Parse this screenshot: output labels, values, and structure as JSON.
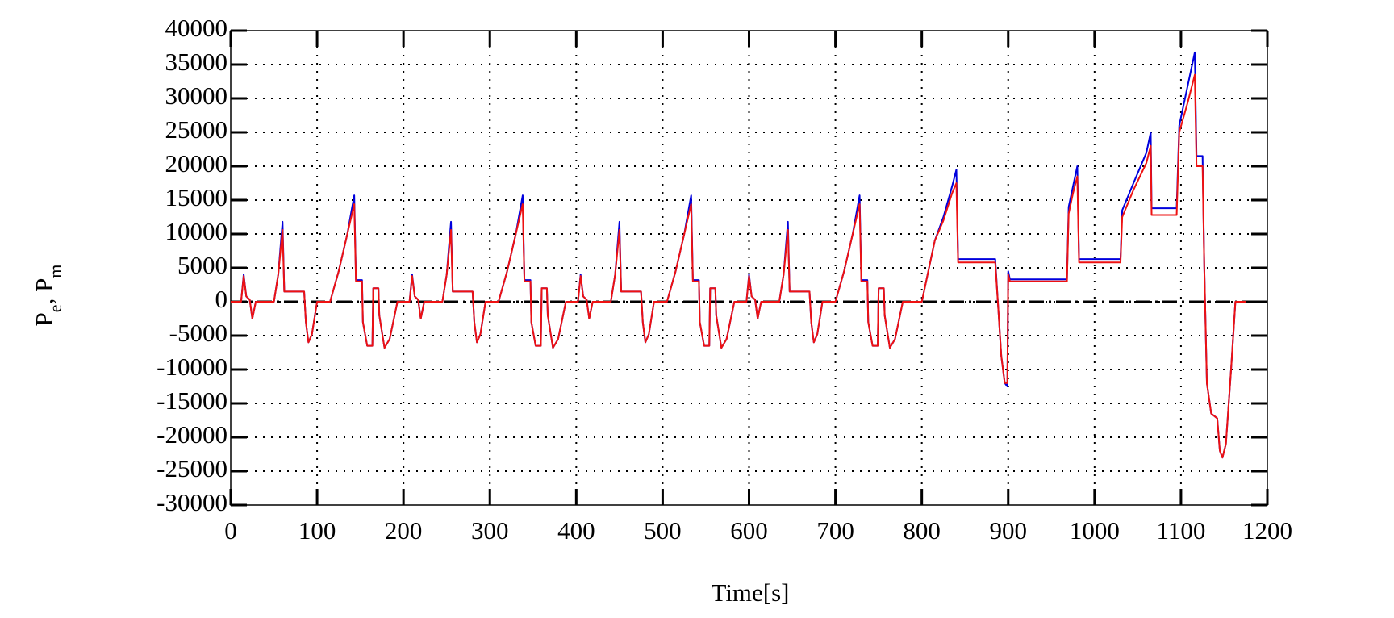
{
  "chart_data": {
    "type": "line",
    "xlabel": "Time[s]",
    "ylabel": [
      {
        "text": "P"
      },
      {
        "sub": "e"
      },
      {
        "text": ", P"
      },
      {
        "sub": "m"
      }
    ],
    "xlim": [
      0,
      1200
    ],
    "ylim": [
      -30000,
      40000
    ],
    "xticks": [
      0,
      100,
      200,
      300,
      400,
      500,
      600,
      700,
      800,
      900,
      1000,
      1100,
      1200
    ],
    "yticks": [
      -30000,
      -25000,
      -20000,
      -15000,
      -10000,
      -5000,
      0,
      5000,
      10000,
      15000,
      20000,
      25000,
      30000,
      35000,
      40000
    ],
    "grid": true,
    "reference_line": {
      "y": 0
    },
    "x": [
      0,
      12,
      15,
      18,
      22,
      25,
      29,
      50,
      55,
      60,
      62,
      85,
      87,
      90,
      94,
      100,
      115,
      125,
      135,
      143,
      145,
      152,
      153,
      158,
      164,
      165,
      171,
      172,
      178,
      184,
      193,
      195,
      207,
      210,
      213,
      217,
      220,
      224,
      245,
      250,
      255,
      257,
      280,
      282,
      285,
      289,
      295,
      310,
      320,
      330,
      338,
      340,
      347,
      348,
      353,
      359,
      360,
      366,
      367,
      373,
      379,
      388,
      390,
      402,
      405,
      408,
      412,
      415,
      419,
      440,
      445,
      450,
      452,
      475,
      477,
      480,
      484,
      490,
      505,
      515,
      525,
      533,
      535,
      542,
      543,
      548,
      554,
      555,
      561,
      562,
      568,
      574,
      583,
      585,
      597,
      600,
      603,
      607,
      610,
      614,
      635,
      640,
      645,
      647,
      670,
      672,
      675,
      679,
      685,
      700,
      710,
      720,
      728,
      730,
      737,
      738,
      743,
      749,
      750,
      756,
      757,
      763,
      769,
      778,
      800,
      805,
      815,
      825,
      835,
      840,
      842,
      885,
      888,
      892,
      896,
      899,
      900,
      902,
      968,
      970,
      975,
      980,
      982,
      1030,
      1032,
      1045,
      1060,
      1065,
      1066,
      1095,
      1098,
      1108,
      1116,
      1118,
      1125,
      1127,
      1130,
      1135,
      1140,
      1142,
      1145,
      1148,
      1152,
      1158,
      1163,
      1175
    ],
    "series": [
      {
        "color": "#0000dd",
        "values": [
          0,
          0,
          4000,
          800,
          300,
          -2500,
          0,
          0,
          4000,
          11800,
          1500,
          1500,
          -3000,
          -6000,
          -4800,
          0,
          0,
          4500,
          10000,
          15700,
          3200,
          3200,
          -3000,
          -6500,
          -6500,
          2000,
          2000,
          -2000,
          -6800,
          -5500,
          0,
          0,
          0,
          4000,
          800,
          300,
          -2500,
          0,
          0,
          4000,
          11800,
          1500,
          1500,
          -3000,
          -6000,
          -4800,
          0,
          0,
          4500,
          10000,
          15700,
          3200,
          3200,
          -3000,
          -6500,
          -6500,
          2000,
          2000,
          -2000,
          -6800,
          -5500,
          0,
          0,
          0,
          4000,
          800,
          300,
          -2500,
          0,
          0,
          4000,
          11800,
          1500,
          1500,
          -3000,
          -6000,
          -4800,
          0,
          0,
          4500,
          10000,
          15700,
          3200,
          3200,
          -3000,
          -6500,
          -6500,
          2000,
          2000,
          -2000,
          -6800,
          -5500,
          0,
          0,
          0,
          4000,
          800,
          300,
          -2500,
          0,
          0,
          4000,
          11800,
          1500,
          1500,
          -3000,
          -6000,
          -4800,
          0,
          0,
          4500,
          10000,
          15700,
          3200,
          3200,
          -3000,
          -6500,
          -6500,
          2000,
          2000,
          -2000,
          -6800,
          -5500,
          0,
          0,
          3000,
          9000,
          12500,
          17000,
          19500,
          6300,
          6300,
          0,
          -8000,
          -12000,
          -12500,
          4500,
          3300,
          3300,
          14000,
          17000,
          20000,
          6300,
          6300,
          13500,
          17500,
          22000,
          25000,
          13800,
          13800,
          26000,
          32000,
          36800,
          21500,
          21500,
          5000,
          -12000,
          -16500,
          -17000,
          -17200,
          -22000,
          -23000,
          -21000,
          -10000,
          0,
          0
        ]
      },
      {
        "color": "#ee1111",
        "values": [
          0,
          0,
          3800,
          800,
          300,
          -2500,
          0,
          0,
          4000,
          10600,
          1500,
          1500,
          -3000,
          -6000,
          -4800,
          0,
          0,
          4500,
          10000,
          14400,
          3000,
          3000,
          -3000,
          -6500,
          -6500,
          2000,
          2000,
          -2000,
          -6800,
          -5500,
          0,
          0,
          0,
          3800,
          800,
          300,
          -2500,
          0,
          0,
          4000,
          10600,
          1500,
          1500,
          -3000,
          -6000,
          -4800,
          0,
          0,
          4500,
          10000,
          14400,
          3000,
          3000,
          -3000,
          -6500,
          -6500,
          2000,
          2000,
          -2000,
          -6800,
          -5500,
          0,
          0,
          0,
          3800,
          800,
          300,
          -2500,
          0,
          0,
          4000,
          10600,
          1500,
          1500,
          -3000,
          -6000,
          -4800,
          0,
          0,
          4500,
          10000,
          14400,
          3000,
          3000,
          -3000,
          -6500,
          -6500,
          2000,
          2000,
          -2000,
          -6800,
          -5500,
          0,
          0,
          0,
          3800,
          800,
          300,
          -2500,
          0,
          0,
          4000,
          10600,
          1500,
          1500,
          -3000,
          -6000,
          -4800,
          0,
          0,
          4500,
          10000,
          14400,
          3000,
          3000,
          -3000,
          -6500,
          -6500,
          2000,
          2000,
          -2000,
          -6800,
          -5500,
          0,
          0,
          3000,
          9000,
          12000,
          16000,
          17500,
          5800,
          5800,
          0,
          -8000,
          -12000,
          -12000,
          4000,
          3000,
          3000,
          13000,
          16000,
          18500,
          5800,
          5800,
          12500,
          16500,
          20500,
          23000,
          12800,
          12800,
          25000,
          29500,
          33500,
          20000,
          20000,
          5000,
          -12000,
          -16500,
          -17000,
          -17200,
          -22000,
          -23000,
          -21000,
          -10000,
          0,
          0
        ]
      }
    ]
  }
}
